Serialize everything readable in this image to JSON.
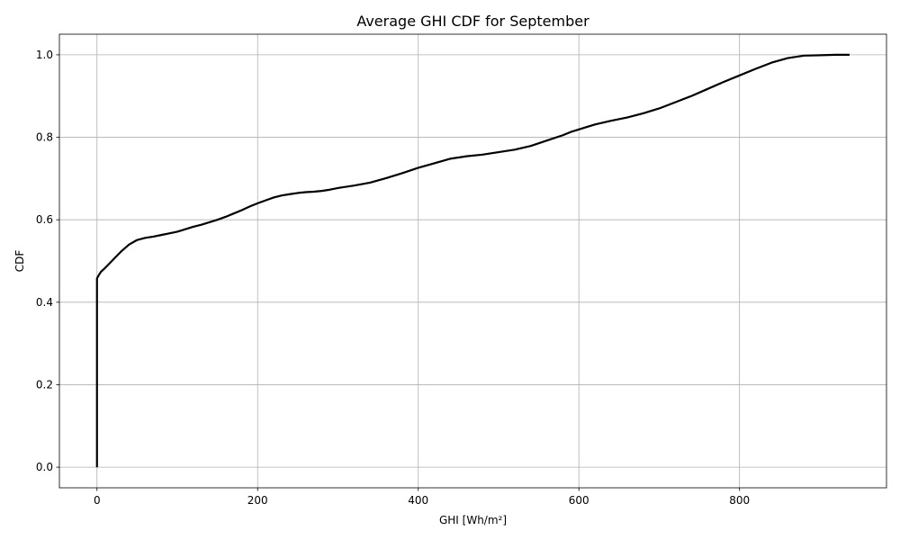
{
  "chart_data": {
    "type": "line",
    "title": "Average GHI CDF for September",
    "xlabel": "GHI [Wh/m²]",
    "ylabel": "CDF",
    "xlim": [
      -46.8,
      983
    ],
    "ylim": [
      -0.05,
      1.05
    ],
    "xticks": [
      0,
      200,
      400,
      600,
      800
    ],
    "yticks": [
      0.0,
      0.2,
      0.4,
      0.6,
      0.8,
      1.0
    ],
    "xtick_labels": [
      "0",
      "200",
      "400",
      "600",
      "800"
    ],
    "ytick_labels": [
      "0.0",
      "0.2",
      "0.4",
      "0.6",
      "0.8",
      "1.0"
    ],
    "grid": true,
    "series": [
      {
        "color": "#000000",
        "x": [
          0,
          0,
          2,
          5,
          10,
          15,
          20,
          30,
          40,
          50,
          60,
          70,
          80,
          90,
          100,
          110,
          120,
          130,
          140,
          150,
          160,
          170,
          180,
          190,
          200,
          210,
          220,
          230,
          240,
          250,
          260,
          270,
          280,
          290,
          300,
          320,
          340,
          360,
          380,
          400,
          420,
          440,
          460,
          480,
          500,
          520,
          540,
          560,
          580,
          590,
          600,
          620,
          640,
          660,
          680,
          700,
          720,
          740,
          760,
          780,
          800,
          820,
          840,
          860,
          880,
          900,
          920,
          937
        ],
        "y": [
          0.0,
          0.458,
          0.465,
          0.474,
          0.483,
          0.493,
          0.503,
          0.523,
          0.54,
          0.551,
          0.556,
          0.559,
          0.563,
          0.567,
          0.571,
          0.577,
          0.583,
          0.588,
          0.594,
          0.6,
          0.607,
          0.615,
          0.623,
          0.632,
          0.64,
          0.647,
          0.654,
          0.659,
          0.662,
          0.665,
          0.667,
          0.668,
          0.67,
          0.673,
          0.677,
          0.683,
          0.69,
          0.701,
          0.713,
          0.726,
          0.737,
          0.748,
          0.754,
          0.758,
          0.764,
          0.77,
          0.779,
          0.792,
          0.805,
          0.813,
          0.819,
          0.831,
          0.84,
          0.848,
          0.858,
          0.87,
          0.885,
          0.9,
          0.917,
          0.934,
          0.95,
          0.966,
          0.981,
          0.992,
          0.998,
          0.999,
          1.0,
          1.0
        ]
      }
    ]
  }
}
